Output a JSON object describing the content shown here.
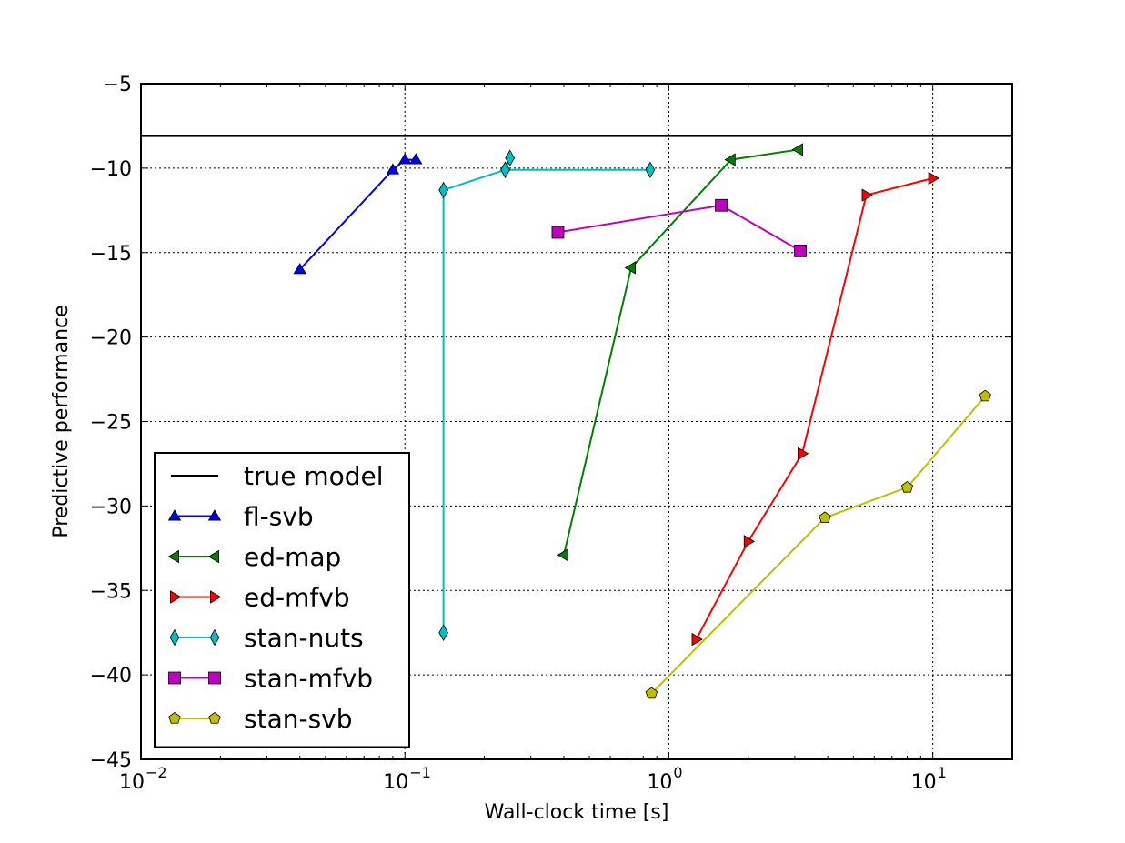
{
  "chart_data": {
    "type": "line",
    "title": "",
    "xlabel": "Wall-clock time [s]",
    "ylabel": "Predictive performance",
    "xscale": "log",
    "xlim": [
      0.01,
      20
    ],
    "ylim": [
      -45,
      -5
    ],
    "grid": true,
    "legend_position": "lower-left",
    "x_ticks": [
      {
        "value": 0.01,
        "base": "10",
        "exp": "-2"
      },
      {
        "value": 0.1,
        "base": "10",
        "exp": "-1"
      },
      {
        "value": 1,
        "base": "10",
        "exp": "0"
      },
      {
        "value": 10,
        "base": "10",
        "exp": "1"
      }
    ],
    "y_ticks": [
      {
        "value": -5,
        "label": "−5"
      },
      {
        "value": -10,
        "label": "−10"
      },
      {
        "value": -15,
        "label": "−15"
      },
      {
        "value": -20,
        "label": "−20"
      },
      {
        "value": -25,
        "label": "−25"
      },
      {
        "value": -30,
        "label": "−30"
      },
      {
        "value": -35,
        "label": "−35"
      },
      {
        "value": -40,
        "label": "−40"
      },
      {
        "value": -45,
        "label": "−45"
      }
    ],
    "reference_line": {
      "name": "true model",
      "y": -8.1,
      "color": "#000000"
    },
    "series": [
      {
        "name": "fl-svb",
        "color": "#0000ff",
        "marker": "triangle-up",
        "points": [
          {
            "x": 0.04,
            "y": -16.0
          },
          {
            "x": 0.09,
            "y": -10.1
          },
          {
            "x": 0.1,
            "y": -9.5
          },
          {
            "x": 0.11,
            "y": -9.5
          }
        ]
      },
      {
        "name": "ed-map",
        "color": "#008000",
        "marker": "triangle-left",
        "points": [
          {
            "x": 0.4,
            "y": -32.9
          },
          {
            "x": 0.72,
            "y": -15.9
          },
          {
            "x": 1.72,
            "y": -9.5
          },
          {
            "x": 3.1,
            "y": -8.9
          }
        ]
      },
      {
        "name": "ed-mfvb",
        "color": "#ff0000",
        "marker": "triangle-right",
        "points": [
          {
            "x": 1.27,
            "y": -37.9
          },
          {
            "x": 2.0,
            "y": -32.1
          },
          {
            "x": 3.2,
            "y": -26.9
          },
          {
            "x": 5.6,
            "y": -11.6
          },
          {
            "x": 10.0,
            "y": -10.6
          }
        ]
      },
      {
        "name": "stan-nuts",
        "color": "#00bfbf",
        "marker": "diamond",
        "points": [
          {
            "x": 0.14,
            "y": -37.5
          },
          {
            "x": 0.14,
            "y": -11.3
          },
          {
            "x": 0.24,
            "y": -10.1
          },
          {
            "x": 0.25,
            "y": -9.4
          },
          {
            "x": 0.24,
            "y": -10.1
          },
          {
            "x": 0.85,
            "y": -10.1
          }
        ]
      },
      {
        "name": "stan-mfvb",
        "color": "#bf00bf",
        "marker": "square",
        "points": [
          {
            "x": 0.38,
            "y": -13.8
          },
          {
            "x": 1.58,
            "y": -12.2
          },
          {
            "x": 3.15,
            "y": -14.9
          }
        ]
      },
      {
        "name": "stan-svb",
        "color": "#bfbf00",
        "marker": "pentagon",
        "points": [
          {
            "x": 0.86,
            "y": -41.1
          },
          {
            "x": 3.9,
            "y": -30.7
          },
          {
            "x": 8.0,
            "y": -28.9
          },
          {
            "x": 15.8,
            "y": -23.5
          }
        ]
      }
    ]
  }
}
